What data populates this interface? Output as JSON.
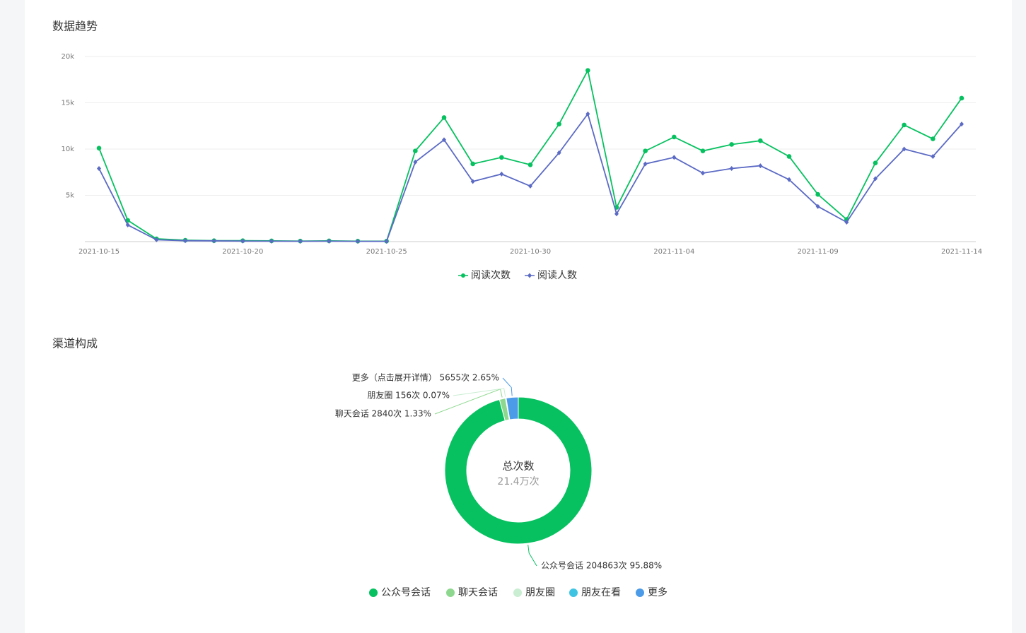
{
  "chart_data": [
    {
      "type": "line",
      "title": "数据趋势",
      "categories": [
        "2021-10-15",
        null,
        null,
        null,
        null,
        "2021-10-20",
        null,
        null,
        null,
        null,
        "2021-10-25",
        null,
        null,
        null,
        null,
        "2021-10-30",
        null,
        null,
        null,
        null,
        "2021-11-04",
        null,
        null,
        null,
        null,
        "2021-11-09",
        null,
        null,
        null,
        null,
        "2021-11-14"
      ],
      "series": [
        {
          "name": "阅读次数",
          "color": "#07c160",
          "marker": "circle",
          "values": [
            10100,
            2300,
            300,
            150,
            100,
            100,
            80,
            60,
            80,
            50,
            50,
            9800,
            13400,
            8400,
            9100,
            8300,
            12700,
            18500,
            3700,
            9800,
            11300,
            9800,
            10500,
            10900,
            9200,
            5100,
            2400,
            8500,
            12600,
            11100,
            15500
          ]
        },
        {
          "name": "阅读人数",
          "color": "#5b6ac4",
          "marker": "diamond",
          "values": [
            7900,
            1800,
            200,
            100,
            80,
            60,
            50,
            40,
            50,
            30,
            30,
            8600,
            11000,
            6500,
            7300,
            6000,
            9600,
            13800,
            3000,
            8400,
            9100,
            7400,
            7900,
            8200,
            6700,
            3800,
            2100,
            6800,
            10000,
            9200,
            12700
          ]
        }
      ],
      "ylim": [
        0,
        20000
      ],
      "yticks": [
        {
          "value": 5000,
          "label": "5k"
        },
        {
          "value": 10000,
          "label": "10k"
        },
        {
          "value": 15000,
          "label": "15k"
        },
        {
          "value": 20000,
          "label": "20k"
        }
      ],
      "grid": true,
      "legend": "bottom"
    },
    {
      "type": "donut",
      "title": "渠道构成",
      "center_title": "总次数",
      "center_value": "21.4万次",
      "categories": [
        "公众号会话",
        "聊天会话",
        "朋友圈",
        "朋友在看",
        "更多"
      ],
      "values": [
        204863,
        2840,
        156,
        152,
        5655
      ],
      "value_labels": [
        "公众号会话 204863次 95.88%",
        "聊天会话 2840次 1.33%",
        "朋友圈 156次 0.07%",
        null,
        "更多（点击展开详情） 5655次 2.65%"
      ],
      "colors": [
        "#07c160",
        "#8dd88e",
        "#c9eed2",
        "#3ec4e2",
        "#4c9be8"
      ],
      "legend": "bottom"
    }
  ]
}
